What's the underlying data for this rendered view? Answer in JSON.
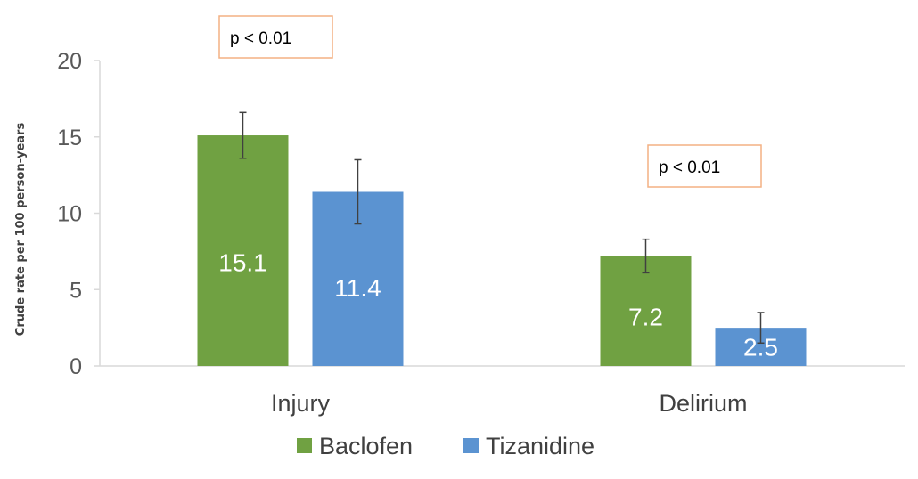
{
  "chart_data": {
    "type": "bar",
    "categories": [
      "Injury",
      "Delirium"
    ],
    "series": [
      {
        "name": "Baclofen",
        "color": "#70a142",
        "values": [
          15.1,
          7.2
        ],
        "error_low": [
          13.6,
          6.1
        ],
        "error_high": [
          16.6,
          8.3
        ],
        "labels": [
          "15.1",
          "7.2"
        ]
      },
      {
        "name": "Tizanidine",
        "color": "#5b93d1",
        "values": [
          11.4,
          2.5
        ],
        "error_low": [
          9.3,
          1.5
        ],
        "error_high": [
          13.5,
          3.5
        ],
        "labels": [
          "11.4",
          "2.5"
        ]
      }
    ],
    "ylabel": "Crude rate per 100 person-years",
    "ylim": [
      0,
      20
    ],
    "yticks": [
      "0",
      "5",
      "10",
      "15",
      "20"
    ],
    "grid": false,
    "legend_position": "bottom",
    "annotations": [
      {
        "category": "Injury",
        "text": "p < 0.01"
      },
      {
        "category": "Delirium",
        "text": "p < 0.01"
      }
    ]
  }
}
